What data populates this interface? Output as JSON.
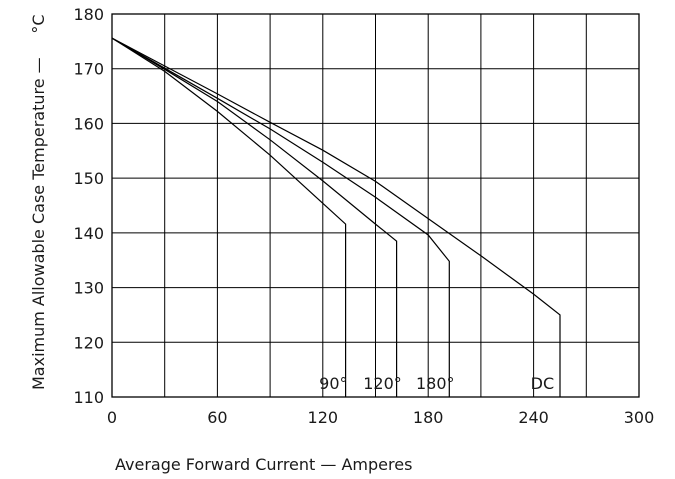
{
  "chart_data": {
    "type": "line",
    "xlabel": "Average Forward Current — Amperes",
    "ylabel": "Maximum Allowable Case Temperature —",
    "ylabel_unit": "°C",
    "xlim": [
      0,
      300
    ],
    "ylim": [
      110,
      180
    ],
    "x_ticks": [
      0,
      60,
      120,
      180,
      240,
      300
    ],
    "y_ticks": [
      110,
      120,
      130,
      140,
      150,
      160,
      170,
      180
    ],
    "x_gridlines": [
      30,
      60,
      90,
      120,
      150,
      180,
      210,
      240,
      270
    ],
    "y_gridlines": [
      120,
      130,
      140,
      150,
      160,
      170
    ],
    "grid": true,
    "series": [
      {
        "name": "90°",
        "x": [
          0,
          30,
          60,
          90,
          120,
          133,
          133
        ],
        "y": [
          175.6,
          169.5,
          162.2,
          154.2,
          145.4,
          141.6,
          110
        ]
      },
      {
        "name": "120°",
        "x": [
          0,
          30,
          60,
          90,
          120,
          150,
          162,
          162
        ],
        "y": [
          175.6,
          169.9,
          164,
          157,
          149.5,
          141.6,
          138.5,
          110
        ]
      },
      {
        "name": "180°",
        "x": [
          0,
          30,
          60,
          90,
          120,
          150,
          180,
          192,
          192
        ],
        "y": [
          175.6,
          170.1,
          164.6,
          159,
          152.9,
          146.5,
          139.6,
          134.8,
          110
        ]
      },
      {
        "name": "DC",
        "x": [
          0,
          30,
          60,
          90,
          120,
          150,
          180,
          210,
          240,
          255,
          255
        ],
        "y": [
          175.6,
          170.5,
          165.4,
          160.2,
          155.1,
          149.4,
          142.6,
          135.8,
          128.8,
          125,
          110
        ]
      }
    ],
    "series_labels": [
      {
        "text": "90°",
        "x": 126
      },
      {
        "text": "120°",
        "x": 154
      },
      {
        "text": "180°",
        "x": 184
      },
      {
        "text": "DC",
        "x": 245
      }
    ]
  }
}
